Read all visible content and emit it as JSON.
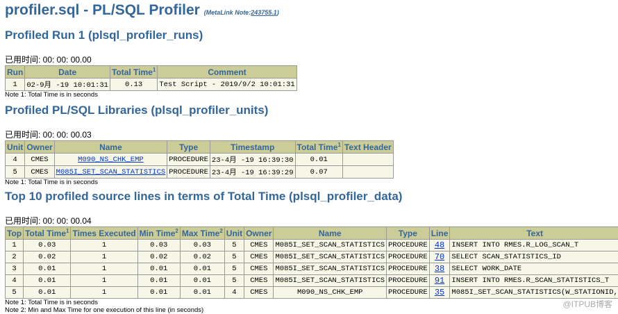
{
  "header": {
    "title": "profiler.sql - PL/SQL Profiler",
    "note_prefix": "(MetaLink Note:",
    "note_link": "243755.1",
    "note_suffix": ")"
  },
  "sections": [
    {
      "heading": "Profiled Run 1 (plsql_profiler_runs)",
      "elapsed": "已用时间:  00: 00: 00.00",
      "columns": [
        "Run",
        "Date",
        {
          "text": "Total Time",
          "sup": "1"
        },
        "Comment"
      ],
      "rows": [
        [
          "1",
          "02-9月 -19 10:01:31",
          "0.13",
          "Test Script - 2019/9/2 10:01:31"
        ]
      ],
      "notes": [
        "Note 1: Total Time is in seconds"
      ]
    },
    {
      "heading": "Profiled PL/SQL Libraries (plsql_profiler_units)",
      "elapsed": "已用时间:  00: 00: 00.03",
      "columns": [
        "Unit",
        "Owner",
        "Name",
        "Type",
        "Timestamp",
        {
          "text": "Total Time",
          "sup": "1"
        },
        "Text Header"
      ],
      "rows": [
        [
          "4",
          "CMES",
          "M090_NS_CHK_EMP",
          "PROCEDURE",
          "23-4月 -19 16:39:30",
          "0.01",
          null
        ],
        [
          "5",
          "CMES",
          "M085I_SET_SCAN_STATISTICS",
          "PROCEDURE",
          "23-4月 -19 16:39:29",
          "0.07",
          null
        ]
      ],
      "notes": [
        "Note 1: Total Time is in seconds"
      ]
    },
    {
      "heading": "Top 10 profiled source lines in terms of Total Time (plsql_profiler_data)",
      "elapsed": "已用时间:  00: 00: 00.04",
      "columns": [
        "Top",
        {
          "text": "Total Time",
          "sup": "1"
        },
        "Times Executed",
        {
          "text": "Min Time",
          "sup": "2"
        },
        {
          "text": "Max Time",
          "sup": "2"
        },
        "Unit",
        "Owner",
        "Name",
        "Type",
        "Line",
        "Text"
      ],
      "rows": [
        [
          "1",
          "0.03",
          "1",
          "0.03",
          "0.03",
          "5",
          "CMES",
          "M085I_SET_SCAN_STATISTICS",
          "PROCEDURE",
          "48",
          "INSERT INTO RMES.R_LOG_SCAN_T"
        ],
        [
          "2",
          "0.02",
          "1",
          "0.02",
          "0.02",
          "5",
          "CMES",
          "M085I_SET_SCAN_STATISTICS",
          "PROCEDURE",
          "70",
          "SELECT SCAN_STATISTICS_ID"
        ],
        [
          "3",
          "0.01",
          "1",
          "0.01",
          "0.01",
          "5",
          "CMES",
          "M085I_SET_SCAN_STATISTICS",
          "PROCEDURE",
          "38",
          "SELECT WORK_DATE"
        ],
        [
          "4",
          "0.01",
          "1",
          "0.01",
          "0.01",
          "5",
          "CMES",
          "M085I_SET_SCAN_STATISTICS",
          "PROCEDURE",
          "91",
          "INSERT INTO RMES.R_SCAN_STATISTICS_T"
        ],
        [
          "5",
          "0.01",
          "1",
          "0.01",
          "0.01",
          "4",
          "CMES",
          "M090_NS_CHK_EMP",
          "PROCEDURE",
          "35",
          "M085I_SET_SCAN_STATISTICS(W_STATIONID,"
        ]
      ],
      "notes": [
        "Note 1: Total Time is in seconds",
        "Note 2: Min and Max Time for one execution of this line (in seconds)"
      ]
    }
  ],
  "watermark": "@ITPUB博客"
}
